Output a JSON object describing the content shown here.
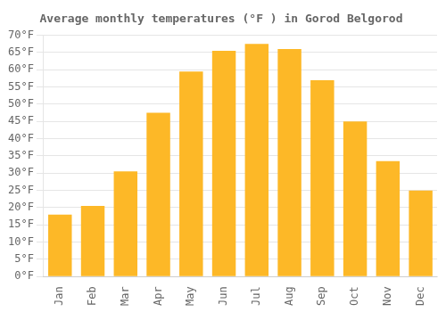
{
  "chart_data": {
    "type": "bar",
    "title": "Average monthly temperatures (°F ) in Gorod Belgorod",
    "categories": [
      "Jan",
      "Feb",
      "Mar",
      "Apr",
      "May",
      "Jun",
      "Jul",
      "Aug",
      "Sep",
      "Oct",
      "Nov",
      "Dec"
    ],
    "values": [
      18,
      20.5,
      30.5,
      47.5,
      59.5,
      65.5,
      67.5,
      66,
      57,
      45,
      33.5,
      25
    ],
    "color": "#FDB827",
    "ylim": [
      0,
      70
    ],
    "yticks": [
      {
        "value": 0,
        "label": "0°F"
      },
      {
        "value": 5,
        "label": "5°F"
      },
      {
        "value": 10,
        "label": "10°F"
      },
      {
        "value": 15,
        "label": "15°F"
      },
      {
        "value": 20,
        "label": "20°F"
      },
      {
        "value": 25,
        "label": "25°F"
      },
      {
        "value": 30,
        "label": "30°F"
      },
      {
        "value": 35,
        "label": "35°F"
      },
      {
        "value": 40,
        "label": "40°F"
      },
      {
        "value": 45,
        "label": "45°F"
      },
      {
        "value": 50,
        "label": "50°F"
      },
      {
        "value": 55,
        "label": "55°F"
      },
      {
        "value": 60,
        "label": "60°F"
      },
      {
        "value": 65,
        "label": "65°F"
      },
      {
        "value": 70,
        "label": "70°F"
      }
    ],
    "grid": true
  }
}
